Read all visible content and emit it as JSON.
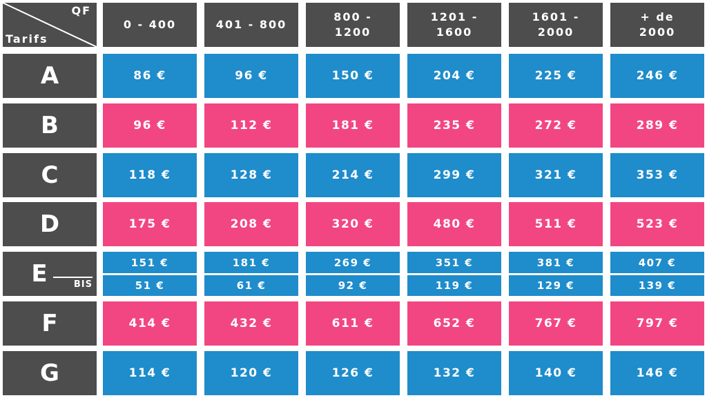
{
  "header": {
    "corner_top": "QF",
    "corner_bottom": "Tarifs",
    "columns": [
      "0 - 400",
      "401 - 800",
      "800 -\n1200",
      "1201 -\n1600",
      "1601 -\n2000",
      "+ de\n2000"
    ]
  },
  "rows": [
    {
      "label": "A",
      "values": [
        "86 €",
        "96 €",
        "150 €",
        "204 €",
        "225 €",
        "246 €"
      ]
    },
    {
      "label": "B",
      "values": [
        "96 €",
        "112 €",
        "181 €",
        "235 €",
        "272 €",
        "289 €"
      ]
    },
    {
      "label": "C",
      "values": [
        "118 €",
        "128 €",
        "214 €",
        "299 €",
        "321 €",
        "353 €"
      ]
    },
    {
      "label": "D",
      "values": [
        "175 €",
        "208 €",
        "320 €",
        "480 €",
        "511 €",
        "523 €"
      ]
    },
    {
      "label": "E",
      "values": [
        "151 €",
        "181 €",
        "269 €",
        "351 €",
        "381 €",
        "407 €"
      ],
      "bis_label": "BIS",
      "bis_values": [
        "51 €",
        "61 €",
        "92 €",
        "119 €",
        "129 €",
        "139 €"
      ]
    },
    {
      "label": "F",
      "values": [
        "414 €",
        "432 €",
        "611 €",
        "652 €",
        "767 €",
        "797 €"
      ]
    },
    {
      "label": "G",
      "values": [
        "114 €",
        "120 €",
        "126 €",
        "132 €",
        "140 €",
        "146 €"
      ]
    }
  ]
}
